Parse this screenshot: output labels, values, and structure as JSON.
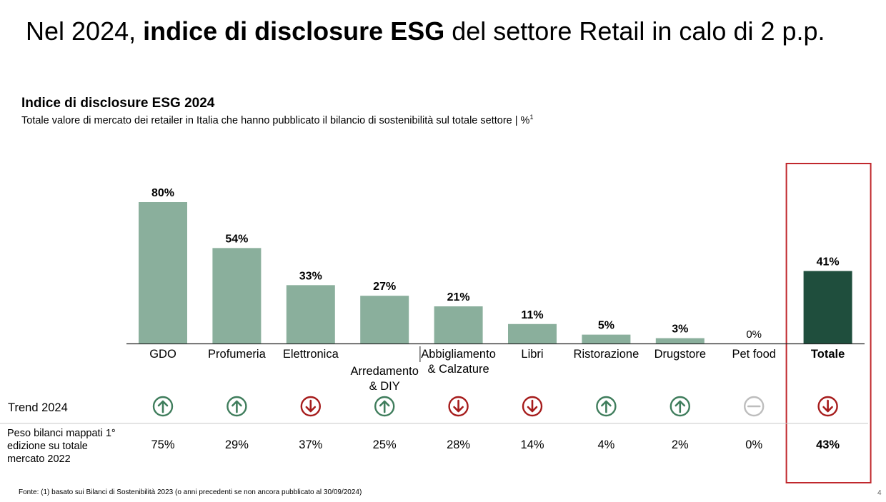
{
  "headline": {
    "prefix": "Nel 2024, ",
    "bold": "indice di disclosure ESG",
    "suffix": " del settore Retail in calo di 2 p.p."
  },
  "chart_data": {
    "type": "bar",
    "title": "Indice di disclosure ESG 2024",
    "subtitle": "Totale valore di mercato dei retailer in Italia che hanno pubblicato il bilancio di sostenibilità sul totale settore | %",
    "subtitle_sup": "1",
    "categories": [
      "GDO",
      "Profumeria",
      "Elettronica",
      "Arredamento & DIY",
      "Abbigliamento & Calzature",
      "Libri",
      "Ristorazione",
      "Drugstore",
      "Pet food",
      "Totale"
    ],
    "category_lines": [
      [
        "GDO"
      ],
      [
        "Profumeria"
      ],
      [
        "Elettronica"
      ],
      [
        "Arredamento",
        "& DIY"
      ],
      [
        "Abbigliamento",
        "& Calzature"
      ],
      [
        "Libri"
      ],
      [
        "Ristorazione"
      ],
      [
        "Drugstore"
      ],
      [
        "Pet food"
      ],
      [
        "Totale"
      ]
    ],
    "values": [
      80,
      54,
      33,
      27,
      21,
      11,
      5,
      3,
      0,
      41
    ],
    "value_labels": [
      "80%",
      "54%",
      "33%",
      "27%",
      "21%",
      "11%",
      "5%",
      "3%",
      "0%",
      "41%"
    ],
    "highlight_index": 9,
    "ylim": [
      0,
      80
    ],
    "xlabel": "",
    "ylabel": "",
    "grid": false,
    "colors": {
      "bar": "#8aaf9c",
      "highlight_bar": "#1f4e3d",
      "highlight_box": "#c0282d",
      "trend_up": "#3f7d5c",
      "trend_down": "#a61c1c",
      "trend_flat": "#bdbdbd"
    },
    "trend": {
      "label": "Trend 2024",
      "values": [
        "up",
        "up",
        "down",
        "up",
        "down",
        "down",
        "up",
        "up",
        "flat",
        "down"
      ]
    },
    "weights": {
      "label_lines": [
        "Peso bilanci mappati 1°",
        "edizione su totale",
        "mercato 2022"
      ],
      "values": [
        "75%",
        "29%",
        "37%",
        "25%",
        "28%",
        "14%",
        "4%",
        "2%",
        "0%",
        "43%"
      ]
    }
  },
  "footnote": "Fonte: (1) basato sui Bilanci di Sostenibilità 2023 (o anni precedenti se non ancora pubblicato al 30/09/2024)",
  "page_number": "4"
}
